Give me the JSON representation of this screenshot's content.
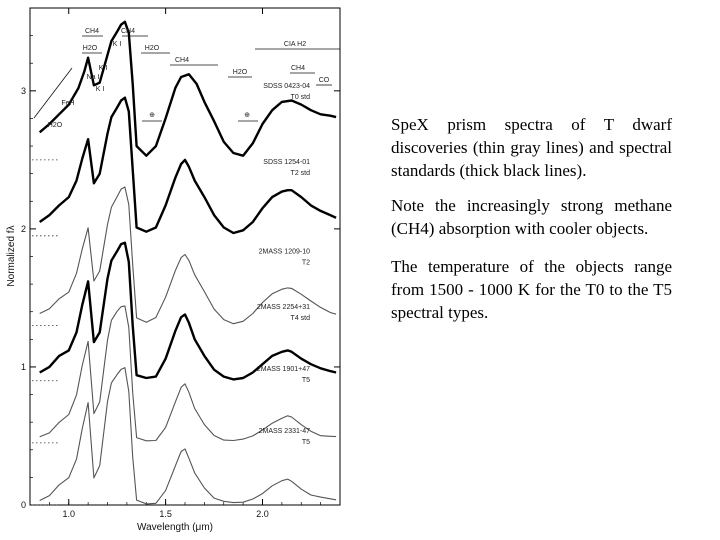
{
  "caption": {
    "paragraph_1": "SpeX prism spectra of T dwarf discoveries (thin gray lines) and spectral standards (thick black lines).",
    "paragraph_2": "Note the increasingly strong methane (CH4) absorption with cooler objects.",
    "paragraph_3": "The temperature of the objects range from 1500 - 1000 K for the T0 to the T5 spectral types."
  },
  "chart_data": {
    "type": "line",
    "xlabel": "Wavelength (μm)",
    "ylabel": "Normalized fλ",
    "xlim": [
      0.8,
      2.4
    ],
    "ylim": [
      0,
      3.6
    ],
    "x_ticks": [
      "1.0",
      "1.5",
      "2.0"
    ],
    "y_ticks": [
      "0",
      "1",
      "2",
      "3"
    ],
    "feature_labels": [
      "CH4",
      "H2O",
      "K I",
      "CH4",
      "H2O",
      "Na I",
      "K I",
      "CH4",
      "H2O",
      "CIA H2",
      "CH4",
      "CO",
      "K I",
      "FeH",
      "H2O",
      "⊕",
      "⊕"
    ],
    "series": [
      {
        "name": "SDSS 0423-04",
        "sublabel": "T0 std",
        "style": "thick",
        "offset": 2.5,
        "x": [
          0.85,
          0.9,
          0.95,
          1.0,
          1.05,
          1.08,
          1.1,
          1.13,
          1.16,
          1.2,
          1.22,
          1.25,
          1.27,
          1.29,
          1.31,
          1.33,
          1.35,
          1.4,
          1.45,
          1.5,
          1.55,
          1.58,
          1.62,
          1.66,
          1.7,
          1.75,
          1.8,
          1.85,
          1.9,
          1.95,
          2.0,
          2.05,
          2.1,
          2.15,
          2.2,
          2.25,
          2.3,
          2.35,
          2.38
        ],
        "y": [
          0.2,
          0.26,
          0.33,
          0.4,
          0.52,
          0.64,
          0.74,
          0.54,
          0.56,
          0.76,
          0.86,
          0.93,
          0.98,
          1.0,
          0.92,
          0.55,
          0.1,
          0.03,
          0.1,
          0.3,
          0.52,
          0.6,
          0.62,
          0.55,
          0.42,
          0.28,
          0.13,
          0.05,
          0.03,
          0.12,
          0.26,
          0.36,
          0.42,
          0.43,
          0.4,
          0.36,
          0.33,
          0.32,
          0.31
        ]
      },
      {
        "name": "SDSS 1254-01",
        "sublabel": "T2 std",
        "style": "thick",
        "offset": 1.95,
        "x": [
          0.85,
          0.9,
          0.95,
          1.0,
          1.04,
          1.07,
          1.1,
          1.13,
          1.16,
          1.2,
          1.22,
          1.25,
          1.27,
          1.29,
          1.31,
          1.33,
          1.35,
          1.4,
          1.45,
          1.5,
          1.55,
          1.58,
          1.6,
          1.62,
          1.65,
          1.7,
          1.75,
          1.8,
          1.85,
          1.9,
          1.95,
          2.0,
          2.05,
          2.1,
          2.13,
          2.15,
          2.2,
          2.25,
          2.3,
          2.35,
          2.38
        ],
        "y": [
          0.1,
          0.15,
          0.22,
          0.28,
          0.4,
          0.56,
          0.7,
          0.38,
          0.45,
          0.74,
          0.86,
          0.93,
          0.98,
          1.0,
          0.9,
          0.48,
          0.06,
          0.03,
          0.06,
          0.22,
          0.42,
          0.52,
          0.55,
          0.5,
          0.4,
          0.28,
          0.15,
          0.06,
          0.02,
          0.04,
          0.1,
          0.2,
          0.28,
          0.32,
          0.33,
          0.33,
          0.28,
          0.22,
          0.18,
          0.15,
          0.13
        ]
      },
      {
        "name": "2MASS 1209-10",
        "sublabel": "T2",
        "style": "thin",
        "offset": 1.3,
        "x": [
          0.85,
          0.9,
          0.95,
          1.0,
          1.04,
          1.07,
          1.1,
          1.13,
          1.16,
          1.2,
          1.22,
          1.25,
          1.27,
          1.29,
          1.31,
          1.33,
          1.35,
          1.4,
          1.45,
          1.5,
          1.55,
          1.58,
          1.6,
          1.62,
          1.65,
          1.7,
          1.75,
          1.8,
          1.85,
          1.9,
          1.95,
          2.0,
          2.05,
          2.1,
          2.13,
          2.15,
          2.2,
          2.25,
          2.3,
          2.35,
          2.38
        ],
        "y": [
          0.08,
          0.12,
          0.2,
          0.25,
          0.38,
          0.55,
          0.7,
          0.32,
          0.4,
          0.74,
          0.86,
          0.93,
          0.98,
          1.0,
          0.88,
          0.45,
          0.06,
          0.02,
          0.05,
          0.2,
          0.4,
          0.5,
          0.52,
          0.47,
          0.36,
          0.24,
          0.12,
          0.05,
          0.02,
          0.03,
          0.08,
          0.16,
          0.23,
          0.27,
          0.28,
          0.27,
          0.22,
          0.17,
          0.13,
          0.1,
          0.09
        ]
      },
      {
        "name": "2MASS 2254+31",
        "sublabel": "T4 std",
        "style": "thick",
        "offset": 0.9,
        "x": [
          0.85,
          0.9,
          0.95,
          1.0,
          1.04,
          1.07,
          1.1,
          1.13,
          1.16,
          1.2,
          1.22,
          1.25,
          1.27,
          1.29,
          1.31,
          1.33,
          1.35,
          1.4,
          1.45,
          1.5,
          1.55,
          1.58,
          1.6,
          1.62,
          1.65,
          1.7,
          1.75,
          1.8,
          1.85,
          1.9,
          1.95,
          2.0,
          2.05,
          2.1,
          2.13,
          2.15,
          2.2,
          2.25,
          2.3,
          2.35,
          2.38
        ],
        "y": [
          0.06,
          0.1,
          0.18,
          0.22,
          0.35,
          0.55,
          0.72,
          0.28,
          0.35,
          0.74,
          0.87,
          0.94,
          0.99,
          1.0,
          0.86,
          0.4,
          0.04,
          0.02,
          0.03,
          0.16,
          0.36,
          0.46,
          0.48,
          0.42,
          0.3,
          0.18,
          0.08,
          0.03,
          0.01,
          0.02,
          0.06,
          0.12,
          0.18,
          0.21,
          0.22,
          0.21,
          0.16,
          0.12,
          0.09,
          0.07,
          0.06
        ]
      },
      {
        "name": "2MASS 1901+47",
        "sublabel": "T5",
        "style": "thin",
        "offset": 0.45,
        "x": [
          0.85,
          0.9,
          0.95,
          1.0,
          1.04,
          1.07,
          1.1,
          1.13,
          1.16,
          1.2,
          1.22,
          1.25,
          1.27,
          1.29,
          1.31,
          1.33,
          1.35,
          1.4,
          1.45,
          1.5,
          1.55,
          1.58,
          1.6,
          1.62,
          1.65,
          1.7,
          1.75,
          1.8,
          1.85,
          1.9,
          1.95,
          2.0,
          2.05,
          2.1,
          2.13,
          2.15,
          2.2,
          2.25,
          2.3,
          2.35,
          2.38
        ],
        "y": [
          0.05,
          0.08,
          0.15,
          0.2,
          0.34,
          0.56,
          0.74,
          0.22,
          0.3,
          0.74,
          0.88,
          0.95,
          0.99,
          1.0,
          0.84,
          0.36,
          0.03,
          0.01,
          0.02,
          0.12,
          0.3,
          0.4,
          0.42,
          0.36,
          0.25,
          0.14,
          0.06,
          0.02,
          0.01,
          0.02,
          0.05,
          0.1,
          0.15,
          0.18,
          0.19,
          0.18,
          0.13,
          0.09,
          0.06,
          0.05,
          0.04
        ]
      },
      {
        "name": "2MASS 2331-47",
        "sublabel": "T5",
        "style": "thin",
        "offset": 0.0,
        "x": [
          0.85,
          0.9,
          0.95,
          1.0,
          1.04,
          1.07,
          1.1,
          1.13,
          1.16,
          1.2,
          1.22,
          1.25,
          1.27,
          1.29,
          1.31,
          1.33,
          1.35,
          1.4,
          1.45,
          1.5,
          1.55,
          1.58,
          1.6,
          1.62,
          1.65,
          1.7,
          1.75,
          1.8,
          1.85,
          1.9,
          1.95,
          2.0,
          2.05,
          2.1,
          2.13,
          2.15,
          2.2,
          2.25,
          2.3,
          2.35,
          2.38
        ],
        "y": [
          0.04,
          0.07,
          0.14,
          0.19,
          0.33,
          0.56,
          0.75,
          0.2,
          0.28,
          0.74,
          0.88,
          0.95,
          0.99,
          1.0,
          0.82,
          0.34,
          0.03,
          0.01,
          0.02,
          0.11,
          0.28,
          0.38,
          0.4,
          0.34,
          0.24,
          0.13,
          0.05,
          0.02,
          0.01,
          0.02,
          0.05,
          0.09,
          0.14,
          0.17,
          0.18,
          0.17,
          0.12,
          0.08,
          0.06,
          0.04,
          0.03
        ]
      }
    ]
  }
}
